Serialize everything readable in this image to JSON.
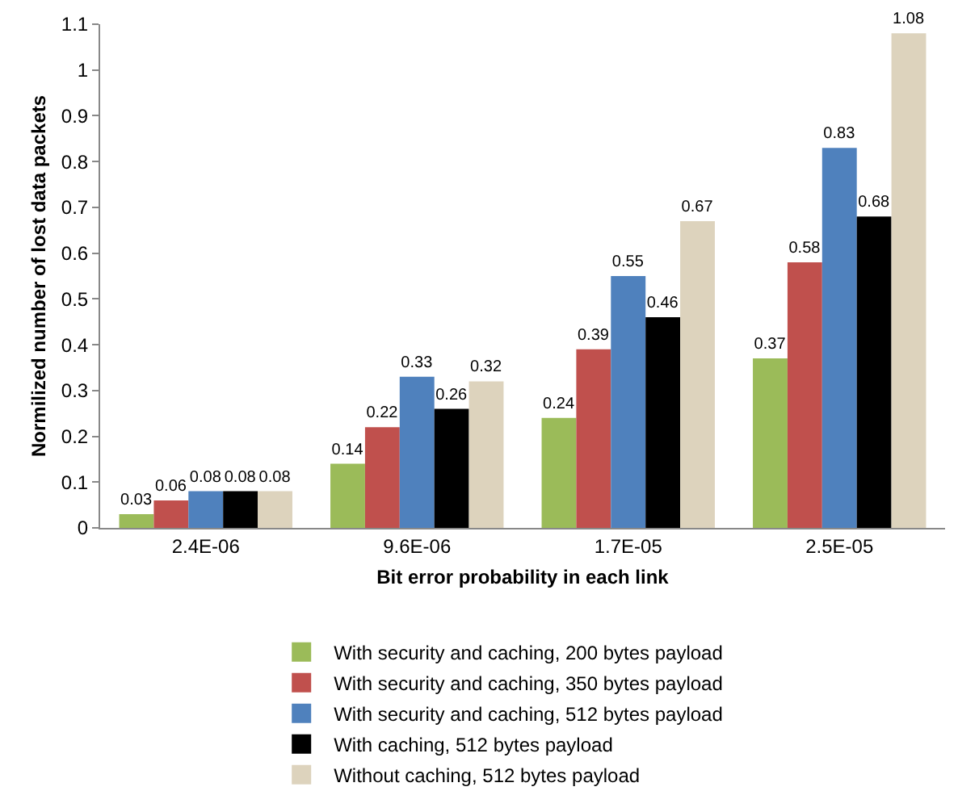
{
  "chart_data": {
    "type": "bar",
    "xlabel": "Bit error probability in each link",
    "ylabel": "Normilized number of lost data packets",
    "categories": [
      "2.4E-06",
      "9.6E-06",
      "1.7E-05",
      "2.5E-05"
    ],
    "series": [
      {
        "name": "With security and caching, 200 bytes payload",
        "color": "#9bbb59",
        "values": [
          0.03,
          0.14,
          0.24,
          0.37
        ]
      },
      {
        "name": "With security and caching, 350 bytes payload",
        "color": "#c0504d",
        "values": [
          0.06,
          0.22,
          0.39,
          0.58
        ]
      },
      {
        "name": "With security and caching, 512 bytes payload",
        "color": "#4f81bd",
        "values": [
          0.08,
          0.33,
          0.55,
          0.83
        ]
      },
      {
        "name": "With caching, 512 bytes payload",
        "color": "#000000",
        "values": [
          0.08,
          0.26,
          0.46,
          0.68
        ]
      },
      {
        "name": "Without caching, 512 bytes payload",
        "color": "#ddd3bd",
        "values": [
          0.08,
          0.32,
          0.67,
          1.08
        ]
      }
    ],
    "ylim": [
      0,
      1.1
    ],
    "yticks": [
      0,
      0.1,
      0.2,
      0.3,
      0.4,
      0.5,
      0.6,
      0.7,
      0.8,
      0.9,
      1,
      1.1
    ],
    "data_labels": true,
    "legend": "bottom"
  }
}
